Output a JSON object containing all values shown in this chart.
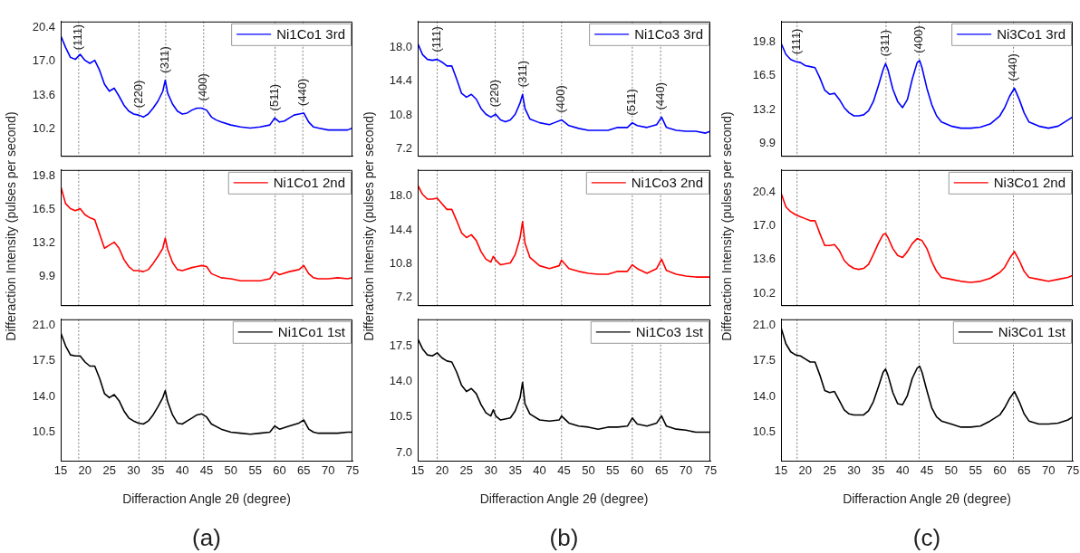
{
  "chart_data": [
    {
      "type": "line",
      "x": [
        15,
        16,
        17,
        18,
        19,
        20,
        21,
        22,
        23,
        24,
        25,
        26,
        27,
        28,
        29,
        30,
        31,
        32,
        33,
        34,
        35,
        36,
        36.5,
        37,
        38,
        39,
        40,
        41,
        42,
        43,
        44,
        45,
        46,
        47,
        48,
        50,
        52,
        54,
        56,
        58,
        59,
        60,
        61,
        62,
        63,
        64,
        65,
        66,
        67,
        68,
        70,
        72,
        74,
        75
      ],
      "series": [
        {
          "name": "Ni1Co1 3rd",
          "color": "#0000ff",
          "values": [
            19.6,
            18.4,
            17.4,
            17.2,
            17.7,
            17.1,
            16.8,
            17.1,
            16.1,
            14.7,
            14.0,
            14.3,
            13.5,
            12.6,
            12.0,
            11.7,
            11.6,
            11.4,
            11.7,
            12.3,
            13.0,
            14.0,
            15.1,
            13.8,
            12.7,
            12.0,
            11.7,
            11.8,
            12.1,
            12.3,
            12.3,
            12.1,
            11.4,
            11.1,
            10.9,
            10.6,
            10.4,
            10.3,
            10.4,
            10.6,
            11.3,
            10.9,
            11.0,
            11.3,
            11.6,
            11.7,
            11.8,
            10.9,
            10.4,
            10.3,
            10.1,
            10.1,
            10.1,
            10.3
          ]
        }
      ],
      "xlim": [
        15,
        75
      ],
      "xticks": [
        15,
        20,
        25,
        30,
        35,
        40,
        45,
        50,
        55,
        60,
        65,
        70,
        75
      ],
      "ylim": [
        7.5,
        21.0
      ],
      "yticks": [
        10.2,
        13.6,
        {
          "value": 17,
          "label": "17.0"
        },
        20.4
      ],
      "ref_lines": [
        {
          "axis": "x",
          "value": 18.7,
          "color": "#808080",
          "line_style": "dotted"
        },
        {
          "axis": "x",
          "value": 31.1,
          "color": "#808080",
          "line_style": "dotted"
        },
        {
          "axis": "x",
          "value": 36.6,
          "color": "#808080",
          "line_style": "dotted"
        },
        {
          "axis": "x",
          "value": 44.4,
          "color": "#808080",
          "line_style": "dotted"
        },
        {
          "axis": "x",
          "value": 59.1,
          "color": "#808080",
          "line_style": "dotted"
        },
        {
          "axis": "x",
          "value": 64.8,
          "color": "#808080",
          "line_style": "dotted"
        }
      ],
      "annotations": [
        {
          "text": "(111)",
          "x": 18.7,
          "y": 17.7
        },
        {
          "text": "(220)",
          "x": 31.1,
          "y": 11.6
        },
        {
          "text": "(311)",
          "x": 36.6,
          "y": 15.1
        },
        {
          "text": "(400)",
          "x": 44.4,
          "y": 12.3
        },
        {
          "text": "(511)",
          "x": 59.1,
          "y": 11.3
        },
        {
          "text": "(440)",
          "x": 64.8,
          "y": 11.8
        }
      ],
      "legend": "top right",
      "marker": "none",
      "line_style": "solid",
      "tick_labels": "y"
    },
    {
      "type": "line",
      "x": [
        15,
        16,
        17,
        18,
        19,
        20,
        21,
        22,
        23,
        24,
        25,
        26,
        27,
        28,
        29,
        30,
        31,
        32,
        33,
        34,
        35,
        36,
        36.5,
        37,
        38,
        40,
        42,
        43,
        44.5,
        46,
        48,
        50,
        52,
        54,
        56,
        58,
        59,
        60,
        62,
        64,
        65,
        66,
        68,
        70,
        72,
        74,
        75
      ],
      "series": [
        {
          "name": "Ni1Co3 3rd",
          "color": "#0000ff",
          "values": [
            18.4,
            17.2,
            16.7,
            16.6,
            16.7,
            16.4,
            16.0,
            16.0,
            14.6,
            13.1,
            12.7,
            13.0,
            12.5,
            11.5,
            10.9,
            10.6,
            10.9,
            10.3,
            10.1,
            10.3,
            10.9,
            12.1,
            13.0,
            11.5,
            10.4,
            10.0,
            9.8,
            10.0,
            10.3,
            9.7,
            9.4,
            9.2,
            9.2,
            9.2,
            9.5,
            9.5,
            10.0,
            9.7,
            9.5,
            9.8,
            10.6,
            9.5,
            9.2,
            9.1,
            9.1,
            8.9,
            9.1
          ]
        }
      ],
      "xlim": [
        15,
        75
      ],
      "xticks": [
        15,
        20,
        25,
        30,
        35,
        40,
        45,
        50,
        55,
        60,
        65,
        70,
        75
      ],
      "ylim": [
        6.5,
        20.7
      ],
      "yticks": [
        7.2,
        10.8,
        14.4,
        {
          "value": 18,
          "label": "18.0"
        }
      ],
      "ref_lines": [
        {
          "axis": "x",
          "value": 19.0,
          "color": "#808080",
          "line_style": "dotted"
        },
        {
          "axis": "x",
          "value": 30.9,
          "color": "#808080",
          "line_style": "dotted"
        },
        {
          "axis": "x",
          "value": 36.6,
          "color": "#808080",
          "line_style": "dotted"
        },
        {
          "axis": "x",
          "value": 44.5,
          "color": "#808080",
          "line_style": "dotted"
        },
        {
          "axis": "x",
          "value": 59.0,
          "color": "#808080",
          "line_style": "dotted"
        },
        {
          "axis": "x",
          "value": 64.8,
          "color": "#808080",
          "line_style": "dotted"
        }
      ],
      "annotations": [
        {
          "text": "(111)",
          "x": 19.0,
          "y": 16.7
        },
        {
          "text": "(220)",
          "x": 30.9,
          "y": 10.9
        },
        {
          "text": "(311)",
          "x": 36.6,
          "y": 13.0
        },
        {
          "text": "(400)",
          "x": 44.5,
          "y": 10.3
        },
        {
          "text": "(511)",
          "x": 59.0,
          "y": 10.0
        },
        {
          "text": "(440)",
          "x": 64.8,
          "y": 10.6
        }
      ],
      "legend": "top right",
      "marker": "none",
      "line_style": "solid",
      "tick_labels": "y"
    },
    {
      "type": "line",
      "x": [
        15,
        16,
        17,
        18,
        19,
        20,
        21,
        22,
        23,
        24,
        25,
        26,
        27,
        28,
        29,
        30,
        31,
        32,
        33,
        34,
        35,
        36,
        36.5,
        37,
        38,
        39,
        40,
        41,
        42,
        43,
        43.5,
        44,
        45,
        46,
        47,
        48,
        50,
        52,
        54,
        56,
        58,
        60,
        61,
        62,
        63,
        64,
        65,
        66,
        68,
        70,
        72,
        74,
        75
      ],
      "series": [
        {
          "name": "Ni3Co1 3rd",
          "color": "#0000ff",
          "values": [
            19.7,
            18.6,
            18.1,
            17.9,
            17.8,
            17.5,
            17.4,
            17.3,
            16.3,
            15.1,
            14.7,
            14.8,
            14.2,
            13.4,
            12.9,
            12.6,
            12.6,
            12.7,
            13.1,
            14.0,
            15.5,
            17.1,
            17.7,
            17.1,
            15.2,
            14.0,
            13.4,
            14.2,
            16.2,
            17.8,
            18.0,
            17.3,
            15.3,
            13.7,
            12.6,
            12.0,
            11.6,
            11.4,
            11.4,
            11.5,
            11.8,
            12.6,
            13.4,
            14.5,
            15.3,
            14.2,
            12.9,
            12.0,
            11.6,
            11.4,
            11.6,
            12.2,
            12.5
          ]
        }
      ],
      "xlim": [
        15,
        75
      ],
      "xticks": [
        15,
        20,
        25,
        30,
        35,
        40,
        45,
        50,
        55,
        60,
        65,
        70,
        75
      ],
      "ylim": [
        8.7,
        21.8
      ],
      "yticks": [
        9.9,
        13.2,
        16.5,
        19.8
      ],
      "ref_lines": [
        {
          "axis": "x",
          "value": 18.3,
          "color": "#808080",
          "line_style": "dotted"
        },
        {
          "axis": "x",
          "value": 36.6,
          "color": "#808080",
          "line_style": "dotted"
        },
        {
          "axis": "x",
          "value": 43.4,
          "color": "#808080",
          "line_style": "dotted"
        },
        {
          "axis": "x",
          "value": 62.8,
          "color": "#808080",
          "line_style": "dotted"
        }
      ],
      "annotations": [
        {
          "text": "(111)",
          "x": 18.3,
          "y": 17.9
        },
        {
          "text": "(311)",
          "x": 36.6,
          "y": 17.7
        },
        {
          "text": "(400)",
          "x": 43.4,
          "y": 18.0
        },
        {
          "text": "(440)",
          "x": 62.8,
          "y": 15.3
        }
      ],
      "legend": "top right",
      "marker": "none",
      "line_style": "solid",
      "tick_labels": "y"
    },
    {
      "type": "line",
      "x": [
        15,
        16,
        17,
        18,
        19,
        20,
        21,
        22,
        23,
        24,
        25,
        26,
        27,
        28,
        29,
        30,
        31,
        32,
        33,
        34,
        35,
        36,
        36.5,
        37,
        38,
        39,
        40,
        42,
        43,
        44,
        45,
        46,
        48,
        50,
        52,
        54,
        56,
        58,
        59,
        60,
        62,
        64,
        65,
        66,
        67,
        68,
        70,
        72,
        74,
        75
      ],
      "series": [
        {
          "name": "Ni1Co1 2nd",
          "color": "#ff0000",
          "values": [
            18.8,
            17.1,
            16.6,
            16.4,
            16.6,
            16.0,
            15.7,
            15.5,
            14.1,
            12.7,
            13.0,
            13.3,
            12.7,
            11.6,
            10.9,
            10.5,
            10.5,
            10.4,
            10.6,
            11.2,
            11.9,
            12.7,
            13.7,
            12.6,
            11.3,
            10.6,
            10.5,
            10.8,
            10.9,
            11.0,
            10.9,
            10.2,
            9.8,
            9.7,
            9.5,
            9.5,
            9.5,
            9.7,
            10.4,
            10.1,
            10.4,
            10.6,
            11.0,
            10.2,
            9.8,
            9.7,
            9.7,
            9.8,
            9.7,
            9.8
          ]
        }
      ],
      "xlim": [
        15,
        75
      ],
      "xticks": [
        15,
        20,
        25,
        30,
        35,
        40,
        45,
        50,
        55,
        60,
        65,
        70,
        75
      ],
      "ylim": [
        7.1,
        20.4
      ],
      "yticks": [
        9.9,
        13.2,
        16.5,
        19.8
      ],
      "ylabel": "Differaction Intensity (pulses per second)",
      "ref_lines": [
        {
          "axis": "x",
          "value": 18.7,
          "color": "#808080",
          "line_style": "dotted"
        },
        {
          "axis": "x",
          "value": 31.1,
          "color": "#808080",
          "line_style": "dotted"
        },
        {
          "axis": "x",
          "value": 36.6,
          "color": "#808080",
          "line_style": "dotted"
        },
        {
          "axis": "x",
          "value": 44.4,
          "color": "#808080",
          "line_style": "dotted"
        },
        {
          "axis": "x",
          "value": 59.1,
          "color": "#808080",
          "line_style": "dotted"
        },
        {
          "axis": "x",
          "value": 64.8,
          "color": "#808080",
          "line_style": "dotted"
        }
      ],
      "legend": "top right",
      "marker": "none",
      "line_style": "solid",
      "tick_labels": "y"
    },
    {
      "type": "line",
      "x": [
        15,
        16,
        17,
        18,
        19,
        20,
        21,
        22,
        23,
        24,
        25,
        26,
        27,
        28,
        29,
        30,
        30.5,
        31,
        32,
        34,
        35,
        36,
        36.5,
        37,
        38,
        40,
        42,
        44,
        44.5,
        46,
        48,
        50,
        52,
        54,
        56,
        58,
        59,
        60,
        62,
        64,
        65,
        66,
        68,
        70,
        72,
        74,
        75
      ],
      "series": [
        {
          "name": "Ni1Co3 2nd",
          "color": "#ff0000",
          "values": [
            19.2,
            18.2,
            17.7,
            17.7,
            17.8,
            17.2,
            16.6,
            16.6,
            15.4,
            14.1,
            13.6,
            13.9,
            13.3,
            12.1,
            11.3,
            11.0,
            11.6,
            11.2,
            10.7,
            10.9,
            11.8,
            13.6,
            15.3,
            13.0,
            11.5,
            10.6,
            10.3,
            10.6,
            11.2,
            10.3,
            10.0,
            9.8,
            9.7,
            9.7,
            10.0,
            10.0,
            10.7,
            10.3,
            9.8,
            10.3,
            11.3,
            10.1,
            9.7,
            9.5,
            9.4,
            9.4,
            9.4
          ]
        }
      ],
      "xlim": [
        15,
        75
      ],
      "xticks": [
        15,
        20,
        25,
        30,
        35,
        40,
        45,
        50,
        55,
        60,
        65,
        70,
        75
      ],
      "ylim": [
        6.4,
        20.8
      ],
      "yticks": [
        7.2,
        10.8,
        14.4,
        {
          "value": 18,
          "label": "18.0"
        }
      ],
      "ylabel": "Differaction Intensity (pulses per second)",
      "ref_lines": [
        {
          "axis": "x",
          "value": 19.0,
          "color": "#808080",
          "line_style": "dotted"
        },
        {
          "axis": "x",
          "value": 30.9,
          "color": "#808080",
          "line_style": "dotted"
        },
        {
          "axis": "x",
          "value": 36.6,
          "color": "#808080",
          "line_style": "dotted"
        },
        {
          "axis": "x",
          "value": 44.5,
          "color": "#808080",
          "line_style": "dotted"
        },
        {
          "axis": "x",
          "value": 59.0,
          "color": "#808080",
          "line_style": "dotted"
        },
        {
          "axis": "x",
          "value": 64.8,
          "color": "#808080",
          "line_style": "dotted"
        }
      ],
      "legend": "top right",
      "marker": "none",
      "line_style": "solid",
      "tick_labels": "y"
    },
    {
      "type": "line",
      "x": [
        15,
        16,
        17,
        18,
        19,
        20,
        21,
        22,
        23,
        24,
        25,
        26,
        27,
        28,
        29,
        30,
        31,
        32,
        33,
        34,
        35,
        36,
        36.5,
        37,
        38,
        39,
        40,
        41,
        42,
        43,
        44,
        45,
        46,
        47,
        48,
        50,
        52,
        54,
        56,
        58,
        60,
        61,
        62,
        63,
        64,
        65,
        66,
        68,
        70,
        72,
        74,
        75
      ],
      "series": [
        {
          "name": "Ni3Co1 2nd",
          "color": "#ff0000",
          "values": [
            20.3,
            18.9,
            18.4,
            18.1,
            17.9,
            17.7,
            17.5,
            17.5,
            16.2,
            15.0,
            15.0,
            15.1,
            14.5,
            13.5,
            13.0,
            12.7,
            12.6,
            12.7,
            13.1,
            14.1,
            15.2,
            16.1,
            16.2,
            15.8,
            14.7,
            14.0,
            13.8,
            14.4,
            15.2,
            15.7,
            15.5,
            14.7,
            13.4,
            12.4,
            11.8,
            11.6,
            11.4,
            11.3,
            11.4,
            11.7,
            12.3,
            12.8,
            13.7,
            14.4,
            13.5,
            12.4,
            11.8,
            11.6,
            11.4,
            11.6,
            11.8,
            12.0
          ]
        }
      ],
      "xlim": [
        15,
        75
      ],
      "xticks": [
        15,
        20,
        25,
        30,
        35,
        40,
        45,
        50,
        55,
        60,
        65,
        70,
        75
      ],
      "ylim": [
        9.0,
        22.6
      ],
      "yticks": [
        10.2,
        13.6,
        {
          "value": 17,
          "label": "17.0"
        },
        20.4
      ],
      "ylabel": "Differaction Intensity (pulses per second)",
      "ref_lines": [
        {
          "axis": "x",
          "value": 18.3,
          "color": "#808080",
          "line_style": "dotted"
        },
        {
          "axis": "x",
          "value": 36.6,
          "color": "#808080",
          "line_style": "dotted"
        },
        {
          "axis": "x",
          "value": 43.4,
          "color": "#808080",
          "line_style": "dotted"
        },
        {
          "axis": "x",
          "value": 62.8,
          "color": "#808080",
          "line_style": "dotted"
        }
      ],
      "legend": "top right",
      "marker": "none",
      "line_style": "solid",
      "tick_labels": "y"
    },
    {
      "type": "line",
      "x": [
        15,
        16,
        17,
        18,
        19,
        20,
        21,
        22,
        23,
        24,
        25,
        26,
        27,
        28,
        29,
        30,
        31,
        32,
        33,
        34,
        35,
        36,
        36.5,
        37,
        38,
        39,
        40,
        41,
        42,
        43,
        44,
        45,
        46,
        48,
        50,
        52,
        54,
        56,
        58,
        59,
        60,
        62,
        64,
        65,
        66,
        67,
        68,
        70,
        72,
        74,
        75
      ],
      "series": [
        {
          "name": "Ni1Co1 1st",
          "color": "#000000",
          "values": [
            20.3,
            19.0,
            18.1,
            18.0,
            18.0,
            17.4,
            17.0,
            17.0,
            15.8,
            14.3,
            13.9,
            14.2,
            13.6,
            12.6,
            11.9,
            11.6,
            11.4,
            11.3,
            11.6,
            12.2,
            13.0,
            13.9,
            14.6,
            13.5,
            12.2,
            11.4,
            11.3,
            11.6,
            11.9,
            12.2,
            12.3,
            12.0,
            11.3,
            10.8,
            10.5,
            10.4,
            10.3,
            10.4,
            10.5,
            11.1,
            10.8,
            11.1,
            11.4,
            11.7,
            10.8,
            10.5,
            10.4,
            10.4,
            10.4,
            10.5,
            10.5
          ]
        }
      ],
      "xlim": [
        15,
        75
      ],
      "xticks": [
        15,
        20,
        25,
        30,
        35,
        40,
        45,
        50,
        55,
        60,
        65,
        70,
        75
      ],
      "ylim": [
        7.7,
        21.6
      ],
      "yticks": [
        10.5,
        {
          "value": 14,
          "label": "14.0"
        },
        17.5,
        {
          "value": 21,
          "label": "21.0"
        }
      ],
      "xlabel": "Differaction Angle 2θ (degree)",
      "ref_lines": [
        {
          "axis": "x",
          "value": 18.7,
          "color": "#808080",
          "line_style": "dotted"
        },
        {
          "axis": "x",
          "value": 31.1,
          "color": "#808080",
          "line_style": "dotted"
        },
        {
          "axis": "x",
          "value": 36.6,
          "color": "#808080",
          "line_style": "dotted"
        },
        {
          "axis": "x",
          "value": 44.4,
          "color": "#808080",
          "line_style": "dotted"
        },
        {
          "axis": "x",
          "value": 59.1,
          "color": "#808080",
          "line_style": "dotted"
        },
        {
          "axis": "x",
          "value": 64.8,
          "color": "#808080",
          "line_style": "dotted"
        }
      ],
      "annotations": [
        "(a)"
      ],
      "legend": "top right",
      "marker": "none",
      "line_style": "solid"
    },
    {
      "type": "line",
      "x": [
        15,
        16,
        17,
        18,
        19,
        20,
        21,
        22,
        23,
        24,
        25,
        26,
        27,
        28,
        29,
        30,
        30.5,
        31,
        32,
        34,
        35,
        36,
        36.5,
        37,
        38,
        40,
        42,
        44,
        44.5,
        46,
        48,
        50,
        52,
        54,
        56,
        58,
        59,
        60,
        62,
        64,
        65,
        66,
        68,
        70,
        72,
        74,
        75
      ],
      "series": [
        {
          "name": "Ni1Co3 1st",
          "color": "#000000",
          "values": [
            18.2,
            17.2,
            16.6,
            16.5,
            16.8,
            16.3,
            16.0,
            15.9,
            14.9,
            13.6,
            13.0,
            13.3,
            12.8,
            11.7,
            10.9,
            10.6,
            11.2,
            10.6,
            10.2,
            10.4,
            11.1,
            12.4,
            13.9,
            11.8,
            10.8,
            10.2,
            10.1,
            10.2,
            10.6,
            9.9,
            9.6,
            9.5,
            9.3,
            9.5,
            9.5,
            9.6,
            10.4,
            9.8,
            9.6,
            9.9,
            10.6,
            9.6,
            9.3,
            9.2,
            9.0,
            9.0,
            9.0
          ]
        }
      ],
      "xlim": [
        15,
        75
      ],
      "xticks": [
        15,
        20,
        25,
        30,
        35,
        40,
        45,
        50,
        55,
        60,
        65,
        70,
        75
      ],
      "ylim": [
        6.2,
        20.1
      ],
      "yticks": [
        {
          "value": 7,
          "label": "7.0"
        },
        10.5,
        {
          "value": 14,
          "label": "14.0"
        },
        17.5
      ],
      "xlabel": "Differaction Angle 2θ (degree)",
      "ref_lines": [
        {
          "axis": "x",
          "value": 19.0,
          "color": "#808080",
          "line_style": "dotted"
        },
        {
          "axis": "x",
          "value": 30.9,
          "color": "#808080",
          "line_style": "dotted"
        },
        {
          "axis": "x",
          "value": 36.6,
          "color": "#808080",
          "line_style": "dotted"
        },
        {
          "axis": "x",
          "value": 44.5,
          "color": "#808080",
          "line_style": "dotted"
        },
        {
          "axis": "x",
          "value": 59.0,
          "color": "#808080",
          "line_style": "dotted"
        },
        {
          "axis": "x",
          "value": 64.8,
          "color": "#808080",
          "line_style": "dotted"
        }
      ],
      "annotations": [
        "(b)"
      ],
      "legend": "top right",
      "marker": "none",
      "line_style": "solid"
    },
    {
      "type": "line",
      "x": [
        15,
        16,
        17,
        18,
        19,
        20,
        21,
        22,
        23,
        24,
        25,
        26,
        27,
        28,
        29,
        30,
        31,
        32,
        33,
        34,
        35,
        36,
        36.5,
        37,
        38,
        39,
        40,
        41,
        42,
        43,
        43.5,
        44,
        45,
        46,
        47,
        48,
        50,
        52,
        54,
        56,
        58,
        60,
        61,
        62,
        63,
        64,
        65,
        66,
        68,
        70,
        72,
        74,
        75
      ],
      "series": [
        {
          "name": "Ni3Co1 1st",
          "color": "#000000",
          "values": [
            20.8,
            19.2,
            18.4,
            18.1,
            18.0,
            17.7,
            17.4,
            17.4,
            16.1,
            14.6,
            14.4,
            14.5,
            13.6,
            12.7,
            12.3,
            12.2,
            12.2,
            12.2,
            12.6,
            13.5,
            14.9,
            16.4,
            16.7,
            16.1,
            14.4,
            13.3,
            13.2,
            14.1,
            15.8,
            16.8,
            17.0,
            16.4,
            14.6,
            12.9,
            12.0,
            11.6,
            11.3,
            11.0,
            11.0,
            11.1,
            11.6,
            12.2,
            12.9,
            13.8,
            14.5,
            13.5,
            12.3,
            11.6,
            11.3,
            11.3,
            11.4,
            11.7,
            12.0
          ]
        }
      ],
      "xlim": [
        15,
        75
      ],
      "xticks": [
        15,
        20,
        25,
        30,
        35,
        40,
        45,
        50,
        55,
        60,
        65,
        70,
        75
      ],
      "ylim": [
        7.7,
        21.6
      ],
      "yticks": [
        10.5,
        {
          "value": 14,
          "label": "14.0"
        },
        17.5,
        {
          "value": 21,
          "label": "21.0"
        }
      ],
      "xlabel": "Differaction Angle 2θ (degree)",
      "ref_lines": [
        {
          "axis": "x",
          "value": 18.3,
          "color": "#808080",
          "line_style": "dotted"
        },
        {
          "axis": "x",
          "value": 36.6,
          "color": "#808080",
          "line_style": "dotted"
        },
        {
          "axis": "x",
          "value": 43.4,
          "color": "#808080",
          "line_style": "dotted"
        },
        {
          "axis": "x",
          "value": 62.8,
          "color": "#808080",
          "line_style": "dotted"
        }
      ],
      "annotations": [
        "(c)"
      ],
      "legend": "top right",
      "marker": "none",
      "line_style": "solid"
    }
  ]
}
